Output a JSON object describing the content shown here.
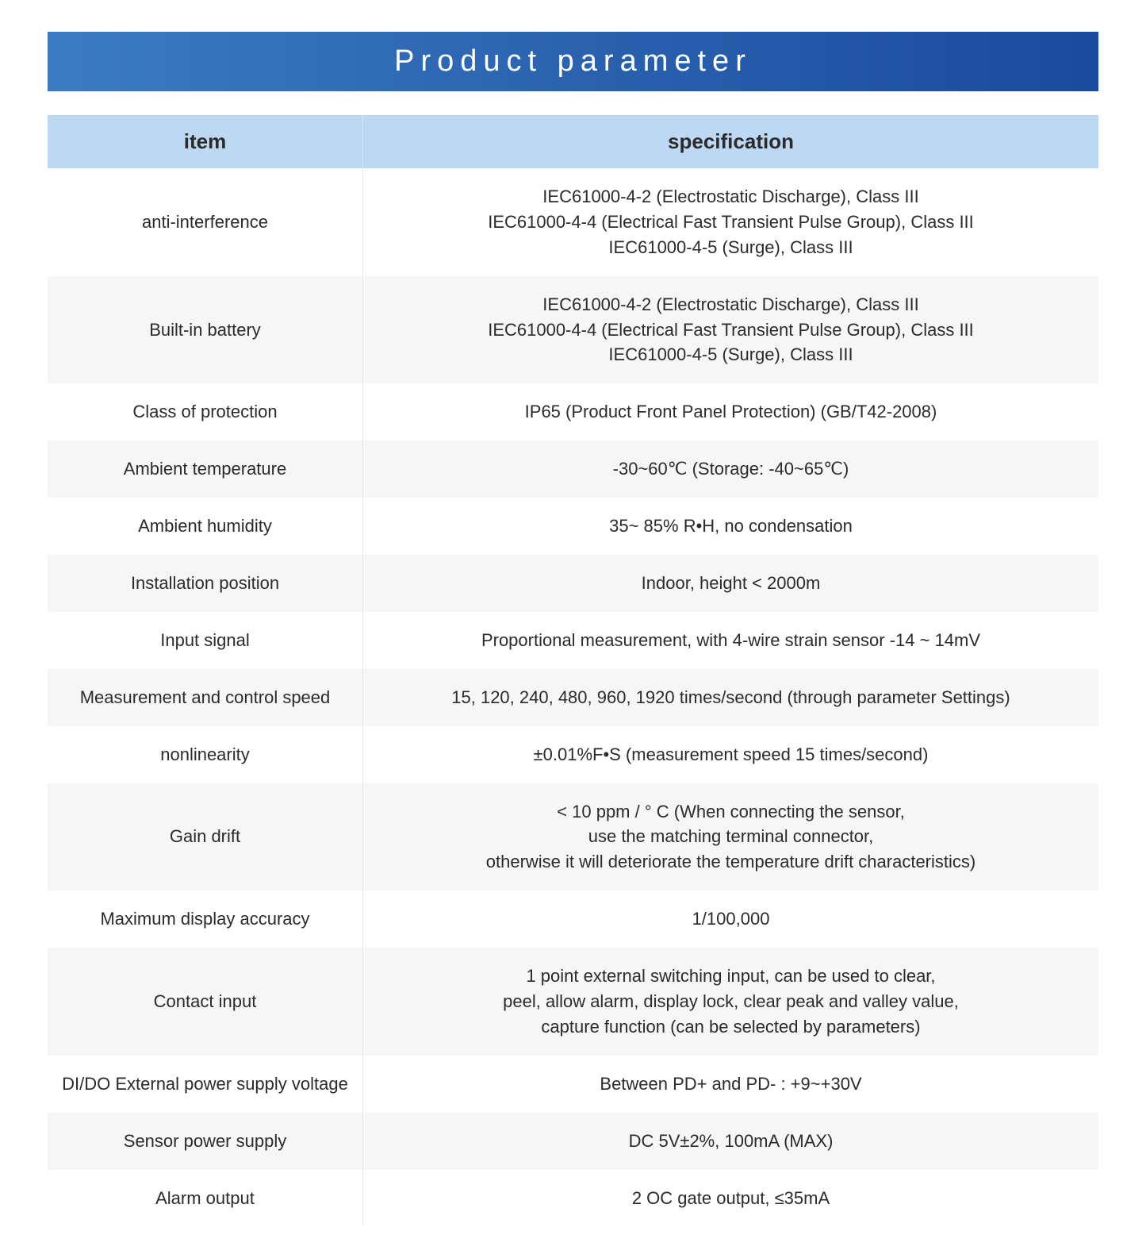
{
  "title": "Product parameter",
  "header": {
    "item": "item",
    "spec": "specification"
  },
  "rows": [
    {
      "item": "anti-interference",
      "spec": "IEC61000-4-2 (Electrostatic Discharge), Class III\nIEC61000-4-4 (Electrical Fast Transient Pulse Group), Class III\nIEC61000-4-5 (Surge), Class III"
    },
    {
      "item": "Built-in battery",
      "spec": "IEC61000-4-2 (Electrostatic Discharge), Class III\nIEC61000-4-4 (Electrical Fast Transient Pulse Group), Class III\nIEC61000-4-5 (Surge), Class III"
    },
    {
      "item": "Class of protection",
      "spec": "IP65 (Product Front Panel Protection) (GB/T42-2008)"
    },
    {
      "item": "Ambient temperature",
      "spec": "-30~60℃ (Storage: -40~65℃)"
    },
    {
      "item": "Ambient humidity",
      "spec": "35~ 85% R•H, no condensation"
    },
    {
      "item": "Installation position",
      "spec": "Indoor, height < 2000m"
    },
    {
      "item": "Input signal",
      "spec": "Proportional measurement, with 4-wire strain sensor -14 ~ 14mV"
    },
    {
      "item": "Measurement and control speed",
      "spec": "15, 120, 240, 480, 960, 1920 times/second (through parameter Settings)"
    },
    {
      "item": "nonlinearity",
      "spec": "±0.01%F•S (measurement speed 15 times/second)"
    },
    {
      "item": "Gain drift",
      "spec": "< 10 ppm / ° C (When connecting the sensor,\nuse the matching terminal connector,\notherwise it will deteriorate the temperature drift characteristics)"
    },
    {
      "item": "Maximum display accuracy",
      "spec": "1/100,000"
    },
    {
      "item": "Contact input",
      "spec": "1 point external switching input, can be used to clear,\npeel, allow alarm, display lock, clear peak and valley value,\ncapture function (can be selected by parameters)"
    },
    {
      "item": "DI/DO External power supply voltage",
      "spec": "Between PD+ and PD- : +9~+30V"
    },
    {
      "item": "Sensor power supply",
      "spec": "DC 5V±2%, 100mA (MAX)"
    },
    {
      "item": "Alarm output",
      "spec": "2 OC gate output, ≤35mA"
    }
  ],
  "styling": {
    "title_bg_gradient_start": "#3b7bc4",
    "title_bg_gradient_end": "#1a4a9c",
    "title_color": "#ffffff",
    "title_fontsize": 38,
    "title_letter_spacing": 8,
    "header_bg": "#bdd8f2",
    "header_fontsize": 26,
    "header_color": "#2b2b2b",
    "row_odd_bg": "#ffffff",
    "row_even_bg": "#f6f6f6",
    "cell_fontsize": 22,
    "cell_color": "#2b2b2b",
    "border_color": "#e8e8e8",
    "col_item_width_pct": 30,
    "col_spec_width_pct": 70
  }
}
